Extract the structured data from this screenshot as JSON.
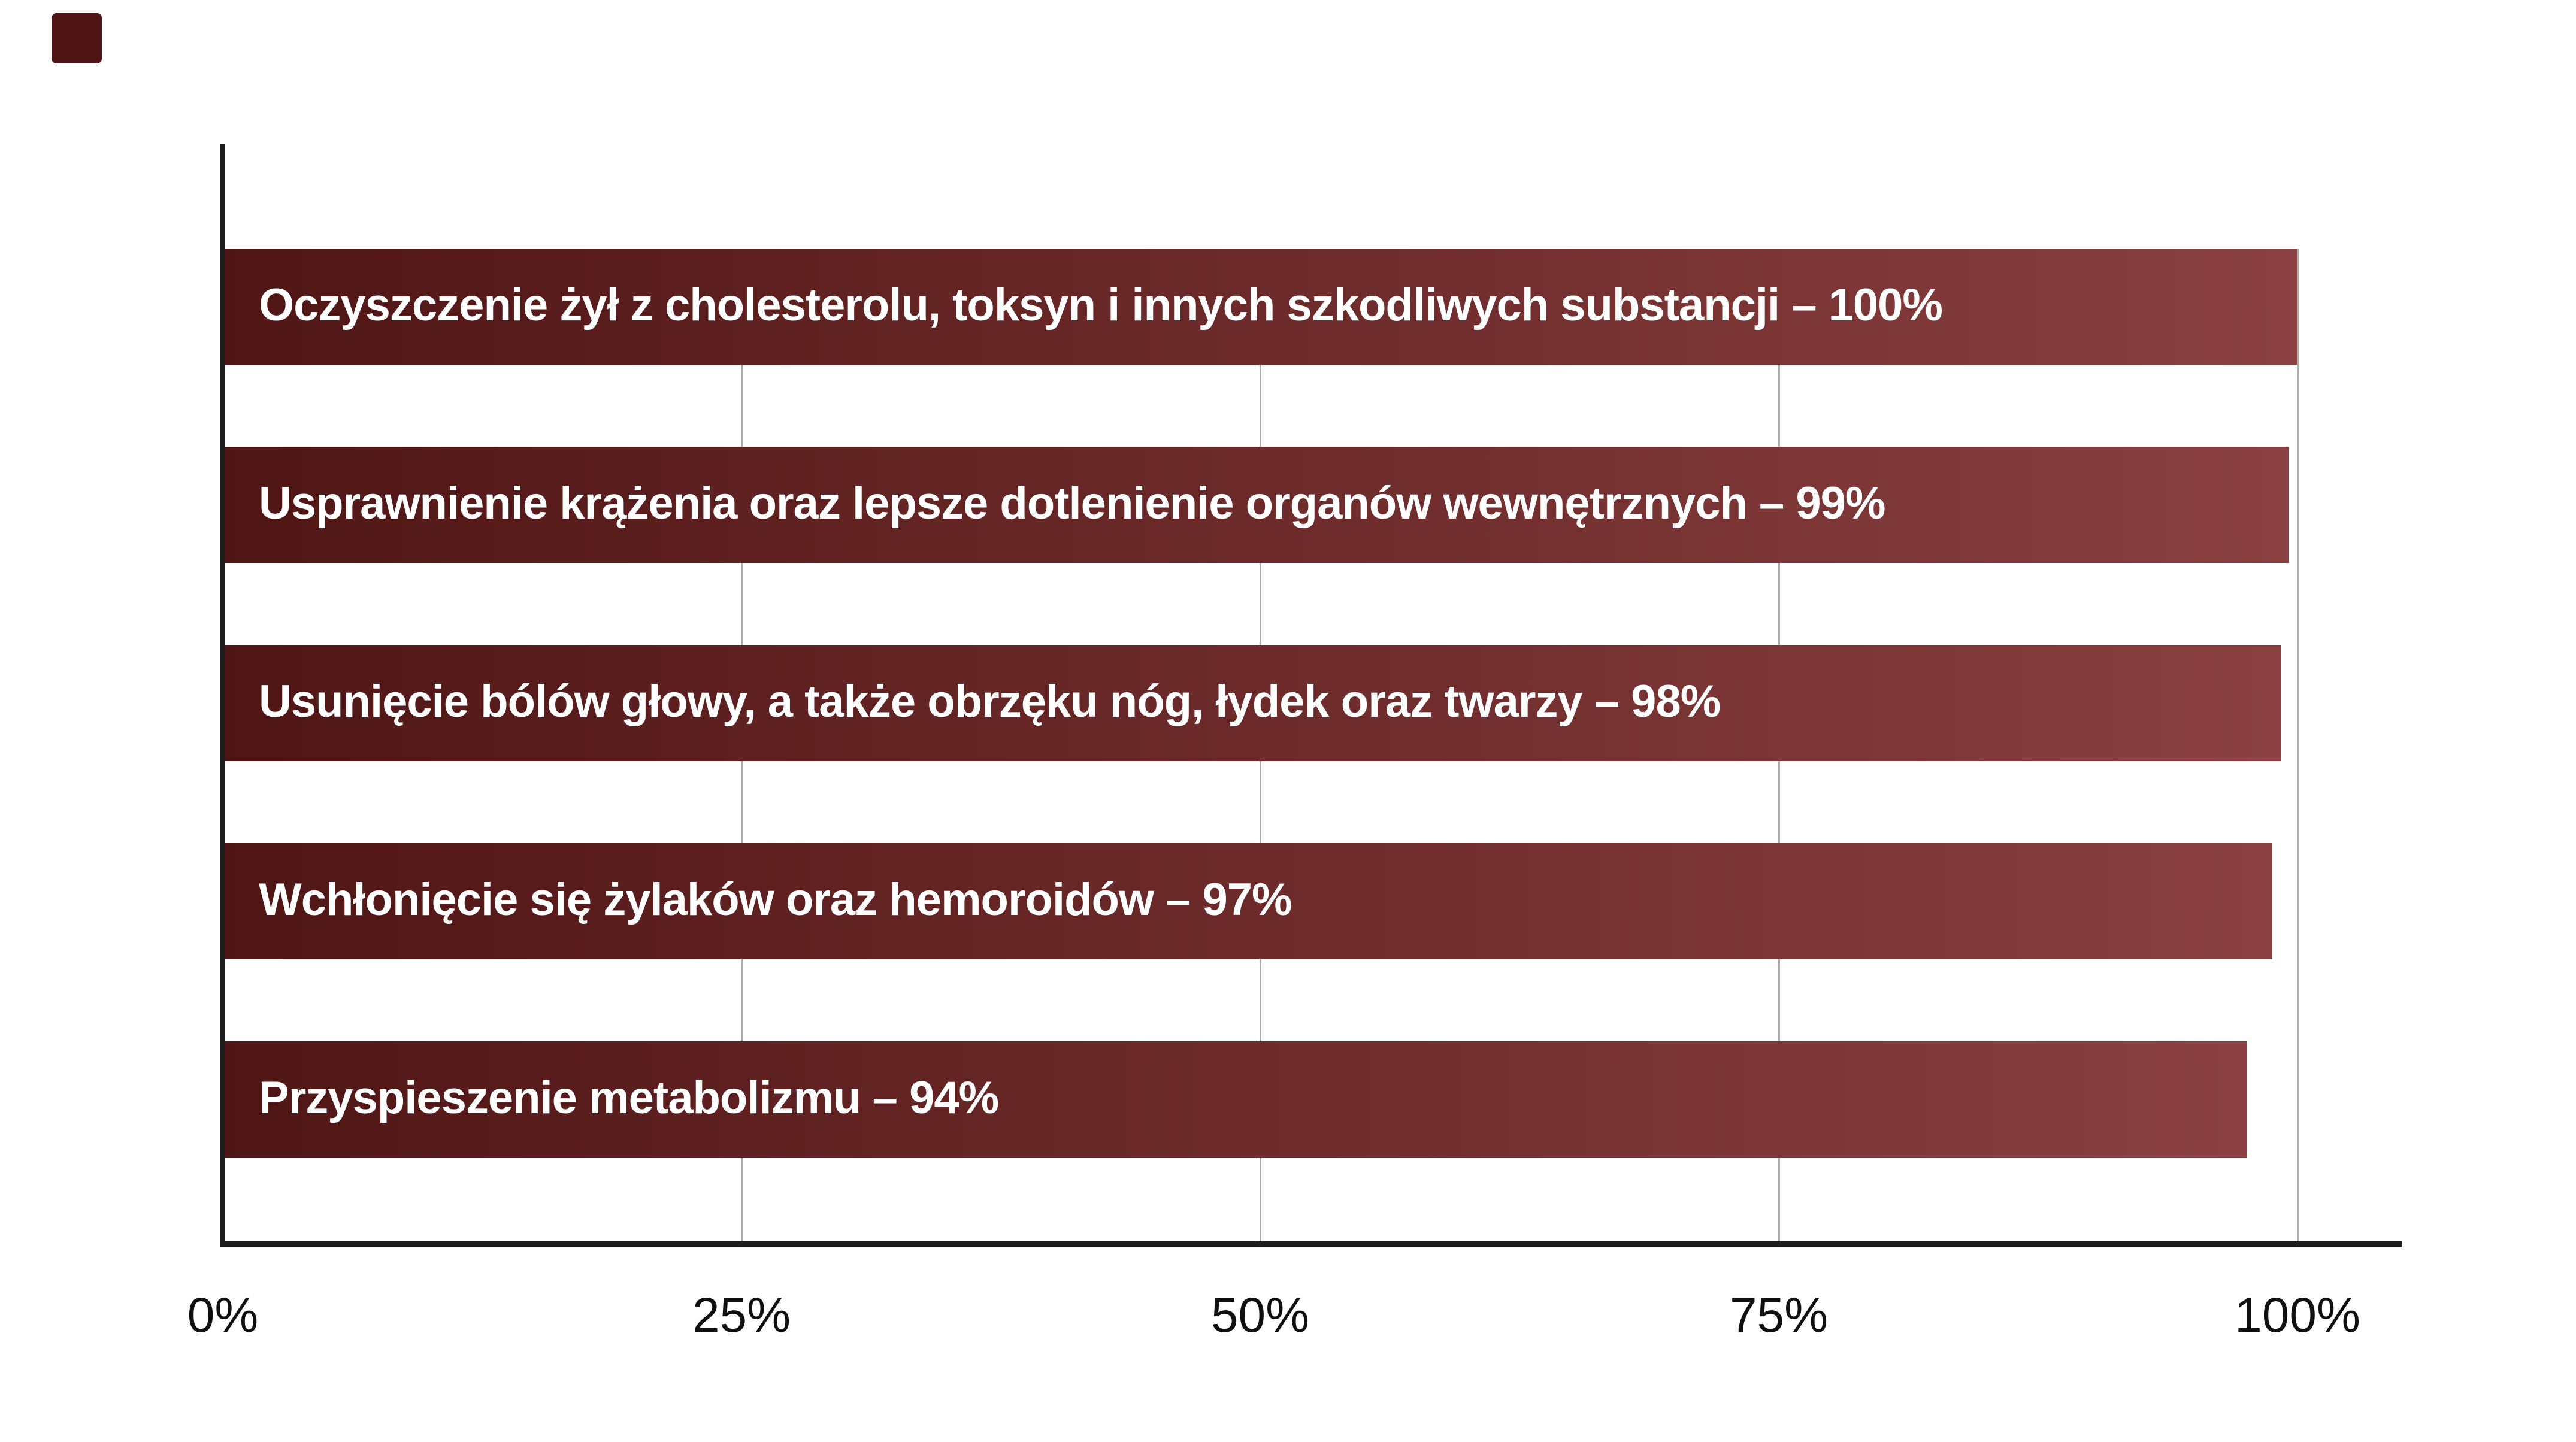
{
  "colors": {
    "background": "#ffffff",
    "bar_gradient_start": "#4f1515",
    "bar_gradient_end": "#8a4040",
    "bar_text": "#ffffff",
    "axis_line": "#1c1c1c",
    "gridline": "#ababab",
    "tick_text": "#101010",
    "corner_square": "#4e1414"
  },
  "chart_data": {
    "type": "bar",
    "orientation": "horizontal",
    "categories": [
      "Oczyszczenie żył z cholesterolu, toksyn i innych szkodliwych substancji",
      "Usprawnienie krążenia oraz lepsze dotlenienie organów wewnętrznych",
      "Usunięcie bólów głowy, a także obrzęku nóg, łydek oraz twarzy",
      "Wchłonięcie się żylaków oraz hemoroidów",
      "Przyspieszenie metabolizmu"
    ],
    "values": [
      100,
      99,
      98,
      97,
      94
    ],
    "bar_labels": [
      "Oczyszczenie żył z cholesterolu, toksyn i innych szkodliwych substancji – 100%",
      "Usprawnienie krążenia oraz lepsze dotlenienie organów wewnętrznych – 99%",
      "Usunięcie bólów głowy, a także obrzęku nóg, łydek oraz twarzy – 98%",
      "Wchłonięcie się żylaków oraz hemoroidów – 97%",
      "Przyspieszenie metabolizmu – 94%"
    ],
    "x_ticks": [
      "0%",
      "25%",
      "50%",
      "75%",
      "100%"
    ],
    "x_tick_values": [
      0,
      25,
      50,
      75,
      100
    ],
    "xlim": [
      0,
      100
    ],
    "grid": true,
    "legend": false
  }
}
